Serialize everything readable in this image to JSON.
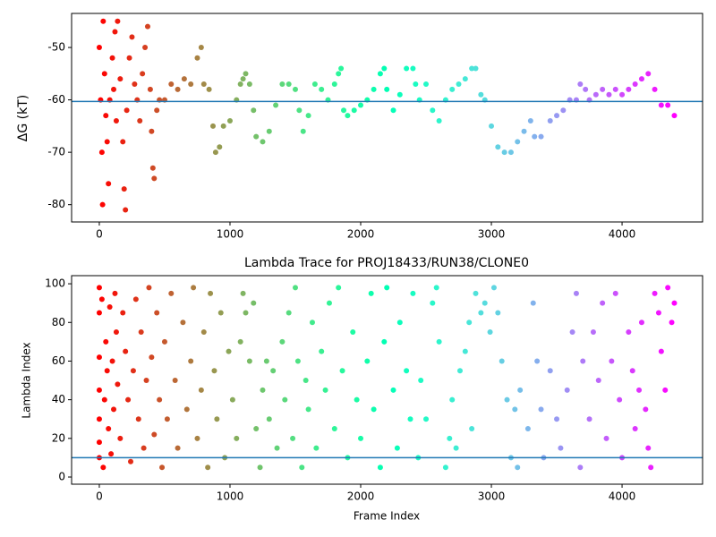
{
  "chart_data": [
    {
      "type": "scatter",
      "ylabel": "ΔG (kT)",
      "colormap": "rainbow_r",
      "hline": -60.3,
      "hline_color": "#1f77b4",
      "xlim": [
        -212,
        4616
      ],
      "xticks": [
        0,
        1000,
        2000,
        3000,
        4000
      ],
      "ylim": [
        -83.3,
        -43.5
      ],
      "yticks": [
        -80,
        -70,
        -60,
        -50
      ],
      "x": [
        0,
        10,
        20,
        25,
        30,
        40,
        50,
        60,
        70,
        80,
        100,
        110,
        120,
        130,
        140,
        160,
        180,
        190,
        200,
        210,
        230,
        250,
        270,
        290,
        310,
        330,
        350,
        370,
        390,
        400,
        410,
        420,
        440,
        460,
        500,
        550,
        600,
        650,
        700,
        750,
        780,
        800,
        840,
        870,
        890,
        920,
        950,
        1000,
        1050,
        1080,
        1100,
        1120,
        1150,
        1180,
        1200,
        1250,
        1300,
        1350,
        1400,
        1450,
        1500,
        1530,
        1560,
        1600,
        1650,
        1700,
        1750,
        1800,
        1830,
        1850,
        1870,
        1900,
        1950,
        2000,
        2050,
        2100,
        2150,
        2180,
        2200,
        2250,
        2300,
        2350,
        2400,
        2420,
        2450,
        2500,
        2550,
        2600,
        2650,
        2700,
        2750,
        2800,
        2850,
        2880,
        2920,
        2950,
        3000,
        3050,
        3100,
        3150,
        3200,
        3250,
        3300,
        3330,
        3380,
        3450,
        3500,
        3550,
        3600,
        3650,
        3680,
        3720,
        3750,
        3800,
        3850,
        3900,
        3950,
        4000,
        4050,
        4100,
        4150,
        4200,
        4250,
        4300,
        4350,
        4400
      ],
      "values": [
        -50,
        -60,
        -70,
        -80,
        -45,
        -55,
        -63,
        -68,
        -76,
        -60,
        -52,
        -58,
        -47,
        -64,
        -45,
        -56,
        -68,
        -77,
        -81,
        -62,
        -52,
        -48,
        -57,
        -60,
        -64,
        -55,
        -50,
        -46,
        -58,
        -66,
        -73,
        -75,
        -62,
        -60,
        -60,
        -57,
        -58,
        -56,
        -57,
        -52,
        -50,
        -57,
        -58,
        -65,
        -70,
        -69,
        -65,
        -64,
        -60,
        -57,
        -56,
        -55,
        -57,
        -62,
        -67,
        -68,
        -66,
        -61,
        -57,
        -57,
        -58,
        -62,
        -66,
        -63,
        -57,
        -58,
        -60,
        -57,
        -55,
        -54,
        -62,
        -63,
        -62,
        -61,
        -60,
        -58,
        -55,
        -54,
        -58,
        -62,
        -59,
        -54,
        -54,
        -57,
        -60,
        -57,
        -62,
        -64,
        -60,
        -58,
        -57,
        -56,
        -54,
        -54,
        -59,
        -60,
        -65,
        -69,
        -70,
        -70,
        -68,
        -66,
        -64,
        -67,
        -67,
        -64,
        -63,
        -62,
        -60,
        -60,
        -57,
        -58,
        -60,
        -59,
        -58,
        -59,
        -58,
        -59,
        -58,
        -57,
        -56,
        -55,
        -58,
        -61,
        -61,
        -63
      ]
    },
    {
      "type": "scatter",
      "title": "Lambda Trace for PROJ18433/RUN38/CLONE0",
      "xlabel": "Frame Index",
      "ylabel": "Lambda Index",
      "colormap": "rainbow_r",
      "hline": 10,
      "hline_color": "#1f77b4",
      "xlim": [
        -212,
        4616
      ],
      "xticks": [
        0,
        1000,
        2000,
        3000,
        4000
      ],
      "ylim": [
        -3.7,
        104.2
      ],
      "yticks": [
        0,
        20,
        40,
        60,
        80,
        100
      ],
      "x": [
        0,
        0,
        0,
        0,
        0,
        0,
        0,
        20,
        30,
        40,
        50,
        60,
        70,
        80,
        90,
        100,
        110,
        120,
        130,
        140,
        160,
        180,
        200,
        220,
        240,
        260,
        280,
        300,
        320,
        340,
        360,
        380,
        400,
        420,
        440,
        460,
        480,
        500,
        520,
        550,
        580,
        600,
        640,
        670,
        700,
        720,
        750,
        780,
        800,
        830,
        850,
        880,
        900,
        930,
        960,
        990,
        1020,
        1050,
        1080,
        1100,
        1120,
        1150,
        1180,
        1200,
        1230,
        1250,
        1280,
        1300,
        1330,
        1360,
        1400,
        1420,
        1450,
        1480,
        1500,
        1520,
        1550,
        1580,
        1600,
        1630,
        1660,
        1700,
        1730,
        1760,
        1800,
        1830,
        1860,
        1900,
        1940,
        1970,
        2000,
        2050,
        2080,
        2100,
        2150,
        2180,
        2200,
        2250,
        2280,
        2300,
        2350,
        2380,
        2400,
        2440,
        2460,
        2500,
        2550,
        2580,
        2600,
        2650,
        2680,
        2700,
        2730,
        2760,
        2800,
        2830,
        2850,
        2880,
        2920,
        2950,
        2990,
        3020,
        3050,
        3080,
        3120,
        3150,
        3180,
        3200,
        3220,
        3280,
        3320,
        3350,
        3380,
        3400,
        3450,
        3500,
        3530,
        3580,
        3620,
        3650,
        3680,
        3700,
        3750,
        3780,
        3820,
        3850,
        3880,
        3920,
        3950,
        3980,
        4000,
        4050,
        4080,
        4100,
        4130,
        4150,
        4180,
        4200,
        4220,
        4250,
        4280,
        4300,
        4330,
        4350,
        4380,
        4400
      ],
      "values": [
        98,
        30,
        18,
        10,
        45,
        62,
        85,
        92,
        5,
        40,
        70,
        55,
        25,
        88,
        12,
        60,
        35,
        95,
        75,
        48,
        20,
        85,
        65,
        40,
        8,
        55,
        92,
        30,
        75,
        15,
        50,
        98,
        62,
        22,
        85,
        40,
        5,
        70,
        30,
        95,
        50,
        15,
        80,
        35,
        60,
        98,
        20,
        45,
        75,
        5,
        95,
        55,
        30,
        85,
        10,
        65,
        40,
        20,
        70,
        95,
        85,
        60,
        90,
        25,
        5,
        45,
        60,
        30,
        55,
        15,
        70,
        40,
        85,
        20,
        98,
        60,
        5,
        50,
        35,
        80,
        15,
        65,
        45,
        90,
        25,
        98,
        55,
        10,
        75,
        40,
        20,
        60,
        95,
        35,
        5,
        70,
        98,
        45,
        15,
        80,
        55,
        30,
        95,
        10,
        50,
        30,
        90,
        98,
        70,
        5,
        20,
        40,
        15,
        55,
        65,
        80,
        25,
        95,
        85,
        90,
        75,
        98,
        85,
        60,
        40,
        10,
        35,
        5,
        45,
        25,
        90,
        60,
        35,
        10,
        55,
        30,
        15,
        45,
        75,
        95,
        5,
        60,
        30,
        75,
        50,
        90,
        20,
        60,
        95,
        40,
        10,
        75,
        55,
        25,
        45,
        80,
        35,
        15,
        5,
        95,
        85,
        65,
        45,
        98,
        80,
        90
      ]
    }
  ]
}
